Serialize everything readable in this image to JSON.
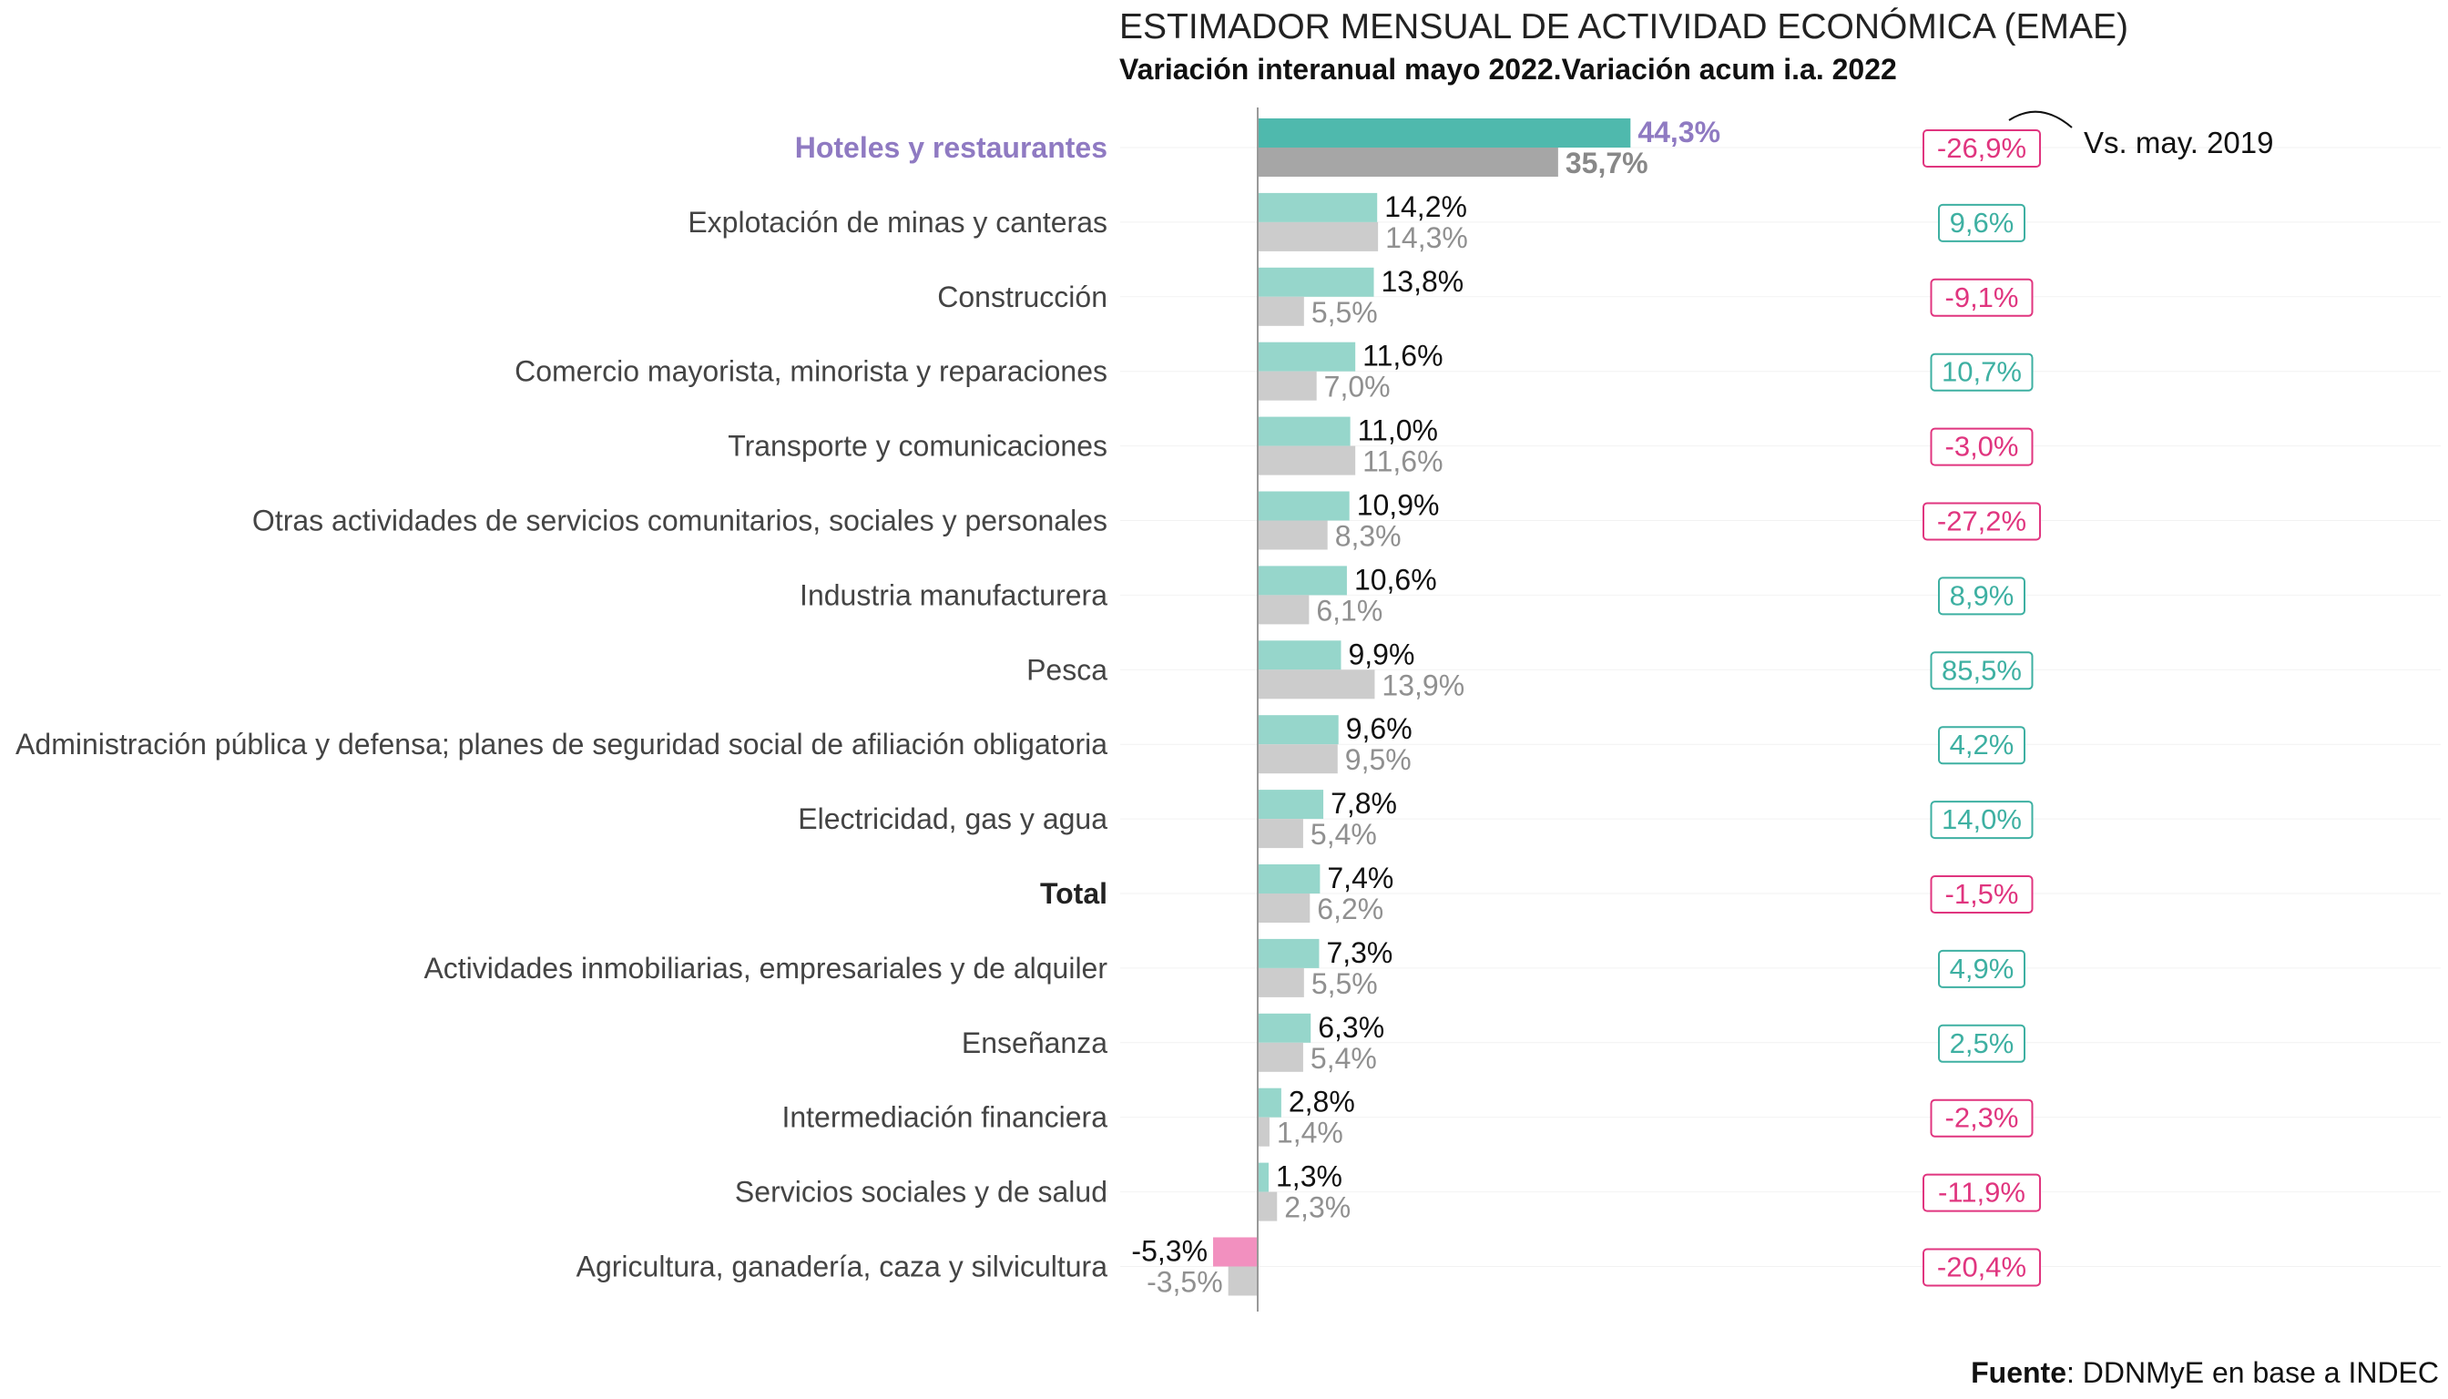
{
  "title": "ESTIMADOR MENSUAL DE ACTIVIDAD ECONÓMICA (EMAE)",
  "subtitle": "Variación interanual mayo 2022.Variación acum i.a. 2022",
  "source": {
    "label": "Fuente",
    "text": ": DDNMyE en base a INDEC"
  },
  "annotation": "Vs. may. 2019",
  "colors": {
    "monthly_positive": "#96d6cb",
    "monthly_negative": "#f290bf",
    "cumulative": "#cccccc",
    "highlight_monthly": "#4fb9ad",
    "highlight_cumulative": "#a6a6a6",
    "highlight_label": "#8f7ac2",
    "badge_positive": "#3eb0a2",
    "badge_negative": "#e0357f",
    "axis": "#999999"
  },
  "chart_data": {
    "type": "bar",
    "orientation": "horizontal",
    "categories": [
      "Hoteles y restaurantes",
      "Explotación de minas y canteras",
      "Construcción",
      "Comercio mayorista, minorista y reparaciones",
      "Transporte y comunicaciones",
      "Otras actividades de servicios comunitarios, sociales y personales",
      "Industria manufacturera",
      "Pesca",
      "Administración pública y defensa; planes de seguridad social de afiliación obligatoria",
      "Electricidad, gas y agua",
      "Total",
      "Actividades inmobiliarias, empresariales y de alquiler",
      "Enseñanza",
      "Intermediación financiera",
      "Servicios sociales y de salud",
      "Agricultura, ganadería, caza y silvicultura"
    ],
    "highlight_index": 0,
    "bold_index": 10,
    "series": [
      {
        "values": [
          44.3,
          14.2,
          13.8,
          11.6,
          11.0,
          10.9,
          10.6,
          9.9,
          9.6,
          7.8,
          7.4,
          7.3,
          6.3,
          2.8,
          1.3,
          -5.3
        ],
        "labels": [
          "44,3%",
          "14,2%",
          "13,8%",
          "11,6%",
          "11,0%",
          "10,9%",
          "10,6%",
          "9,9%",
          "9,6%",
          "7,8%",
          "7,4%",
          "7,3%",
          "6,3%",
          "2,8%",
          "1,3%",
          "-5,3%"
        ]
      },
      {
        "values": [
          35.7,
          14.3,
          5.5,
          7.0,
          11.6,
          8.3,
          6.1,
          13.9,
          9.5,
          5.4,
          6.2,
          5.5,
          5.4,
          1.4,
          2.3,
          -3.5
        ],
        "labels": [
          "35,7%",
          "14,3%",
          "5,5%",
          "7,0%",
          "11,6%",
          "8,3%",
          "6,1%",
          "13,9%",
          "9,5%",
          "5,4%",
          "6,2%",
          "5,5%",
          "5,4%",
          "1,4%",
          "2,3%",
          "-3,5%"
        ]
      },
      {
        "values": [
          -26.9,
          9.6,
          -9.1,
          10.7,
          -3.0,
          -27.2,
          8.9,
          85.5,
          4.2,
          14.0,
          -1.5,
          4.9,
          2.5,
          -2.3,
          -11.9,
          -20.4
        ],
        "labels": [
          "-26,9%",
          "9,6%",
          "-9,1%",
          "10,7%",
          "-3,0%",
          "-27,2%",
          "8,9%",
          "85,5%",
          "4,2%",
          "14,0%",
          "-1,5%",
          "4,9%",
          "2,5%",
          "-2,3%",
          "-11,9%",
          "-20,4%"
        ]
      }
    ]
  }
}
